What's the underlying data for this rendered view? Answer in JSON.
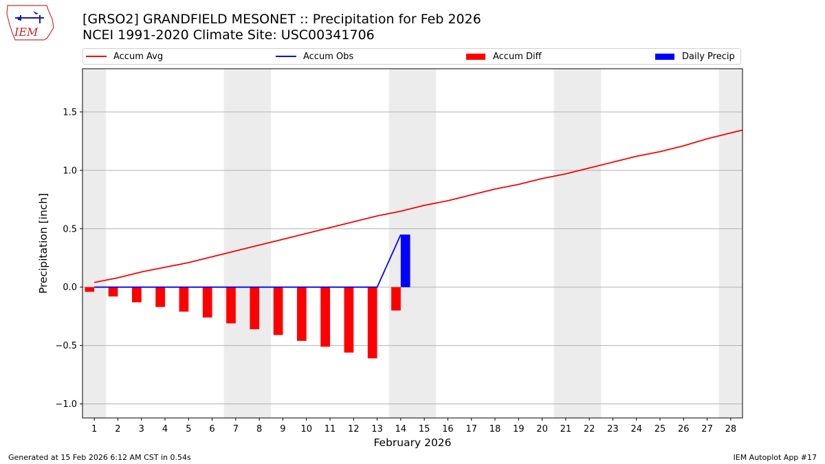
{
  "header": {
    "title": "[GRSO2] GRANDFIELD MESONET :: Precipitation for Feb 2026",
    "subtitle": "NCEI 1991-2020 Climate Site: USC00341706",
    "logo_text": "IEM"
  },
  "legend": {
    "items": [
      {
        "label": "Accum Avg",
        "kind": "line",
        "color": "#ff0000"
      },
      {
        "label": "Accum Obs",
        "kind": "line",
        "color": "#0000ff"
      },
      {
        "label": "Accum Diff",
        "kind": "box",
        "color": "#ff0000"
      },
      {
        "label": "Daily Precip",
        "kind": "box",
        "color": "#0000ff"
      }
    ]
  },
  "footer": {
    "left": "Generated at 15 Feb 2026 6:12 AM CST in 0.54s",
    "right": "IEM Autoplot App #17"
  },
  "chart_data": {
    "type": "bar",
    "xlabel": "February 2026",
    "ylabel": "Precipitation [inch]",
    "xlim": [
      0.5,
      28.5
    ],
    "ylim": [
      -1.12,
      1.87
    ],
    "yticks": [
      -1.0,
      -0.5,
      0.0,
      0.5,
      1.0,
      1.5
    ],
    "ytick_labels": [
      "−1.0",
      "−0.5",
      "0.0",
      "0.5",
      "1.0",
      "1.5"
    ],
    "xticks": [
      1,
      2,
      3,
      4,
      5,
      6,
      7,
      8,
      9,
      10,
      11,
      12,
      13,
      14,
      15,
      16,
      17,
      18,
      19,
      20,
      21,
      22,
      23,
      24,
      25,
      26,
      27,
      28
    ],
    "grid": "y",
    "weekend_shading": [
      [
        0.5,
        1.5
      ],
      [
        6.5,
        8.5
      ],
      [
        13.5,
        15.5
      ],
      [
        20.5,
        22.5
      ],
      [
        27.5,
        28.5
      ]
    ],
    "series": [
      {
        "name": "Accum Avg",
        "kind": "line",
        "color": "#ff0000",
        "x": [
          1,
          2,
          3,
          4,
          5,
          6,
          7,
          8,
          9,
          10,
          11,
          12,
          13,
          14,
          15,
          16,
          17,
          18,
          19,
          20,
          21,
          22,
          23,
          24,
          25,
          26,
          27,
          28,
          28.5
        ],
        "values": [
          0.04,
          0.08,
          0.13,
          0.17,
          0.21,
          0.26,
          0.31,
          0.36,
          0.41,
          0.46,
          0.51,
          0.56,
          0.61,
          0.65,
          0.7,
          0.74,
          0.79,
          0.84,
          0.88,
          0.93,
          0.97,
          1.02,
          1.07,
          1.12,
          1.16,
          1.21,
          1.27,
          1.32,
          1.345
        ]
      },
      {
        "name": "Accum Obs",
        "kind": "line",
        "color": "#0000ff",
        "x": [
          1,
          2,
          3,
          4,
          5,
          6,
          7,
          8,
          9,
          10,
          11,
          12,
          13,
          14
        ],
        "values": [
          0,
          0,
          0,
          0,
          0,
          0,
          0,
          0,
          0,
          0,
          0,
          0,
          0,
          0.45
        ]
      },
      {
        "name": "Accum Diff",
        "kind": "bar",
        "color": "#ff0000",
        "x": [
          1,
          2,
          3,
          4,
          5,
          6,
          7,
          8,
          9,
          10,
          11,
          12,
          13,
          14
        ],
        "values": [
          -0.04,
          -0.08,
          -0.13,
          -0.17,
          -0.21,
          -0.26,
          -0.31,
          -0.36,
          -0.41,
          -0.46,
          -0.51,
          -0.56,
          -0.61,
          -0.2
        ]
      },
      {
        "name": "Daily Precip",
        "kind": "bar",
        "color": "#0000ff",
        "x": [
          14
        ],
        "values": [
          0.45
        ]
      }
    ]
  }
}
